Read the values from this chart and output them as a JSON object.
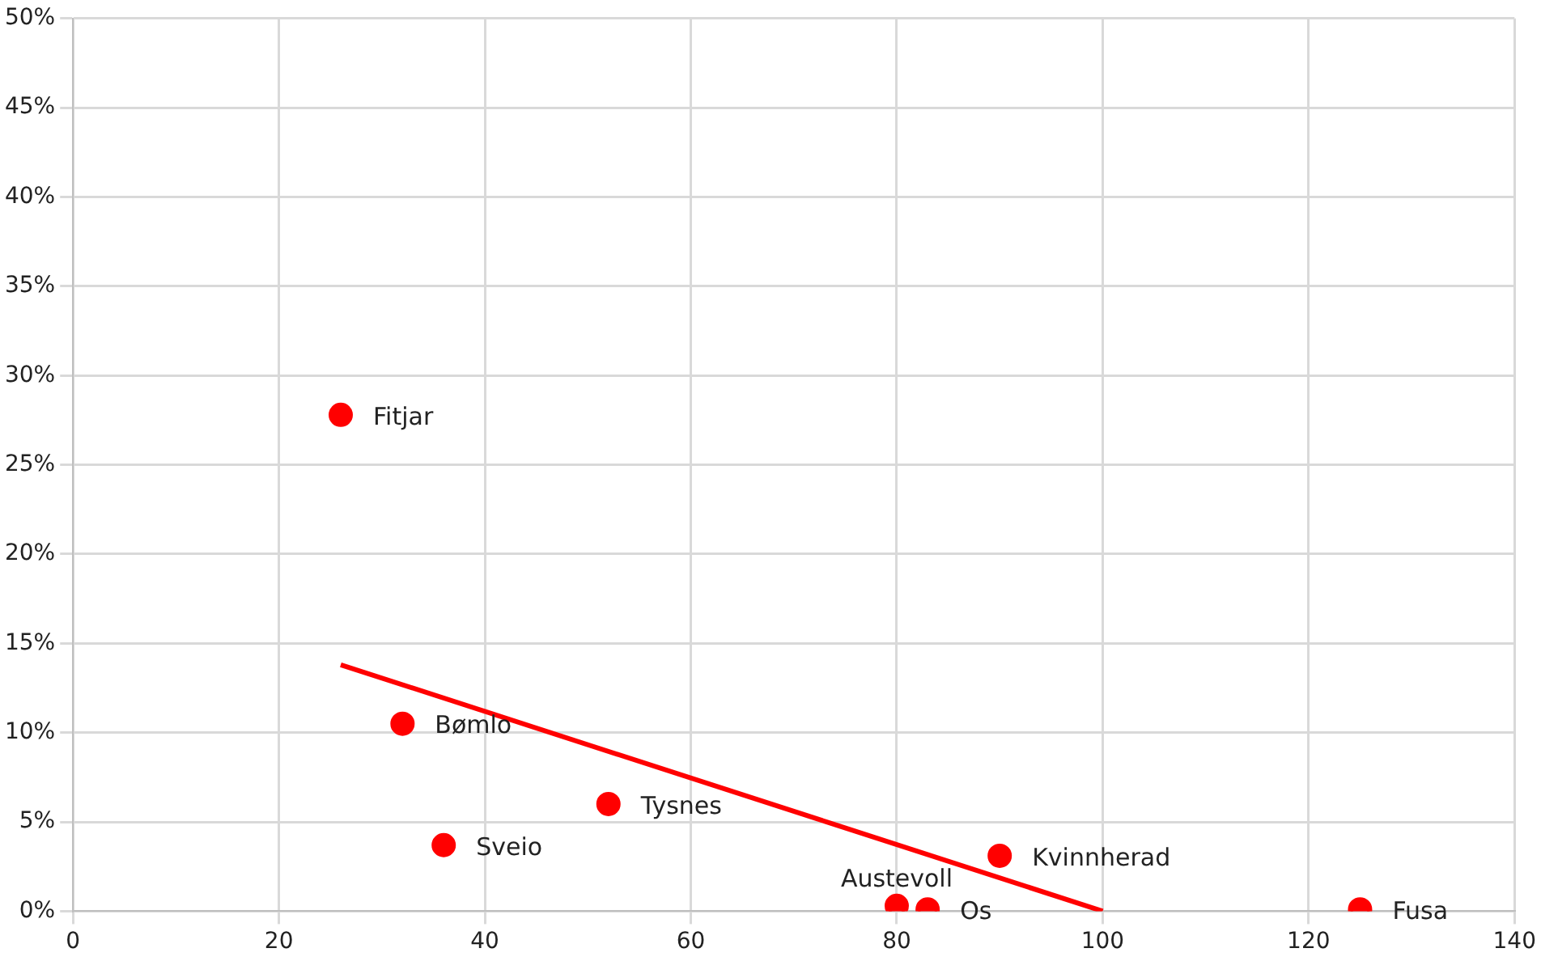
{
  "chart_data": {
    "type": "scatter",
    "xlim": [
      0,
      140
    ],
    "xticks": [
      0,
      20,
      40,
      60,
      80,
      100,
      120,
      140
    ],
    "ylim": [
      0,
      50
    ],
    "yticks": [
      {
        "value": 0,
        "label": "0%"
      },
      {
        "value": 5,
        "label": "5%"
      },
      {
        "value": 10,
        "label": "10%"
      },
      {
        "value": 15,
        "label": "15%"
      },
      {
        "value": 20,
        "label": "20%"
      },
      {
        "value": 25,
        "label": "25%"
      },
      {
        "value": 30,
        "label": "30%"
      },
      {
        "value": 35,
        "label": "35%"
      },
      {
        "value": 40,
        "label": "40%"
      },
      {
        "value": 45,
        "label": "45%"
      },
      {
        "value": 50,
        "label": "50%"
      }
    ],
    "grid": true,
    "legend": false,
    "marker": "circle",
    "series": [
      {
        "color": "#ff0000",
        "x": [
          26,
          32,
          36,
          52,
          80,
          83,
          90,
          125
        ],
        "values": [
          27.8,
          10.5,
          3.7,
          6.0,
          0.3,
          0.1,
          3.1,
          0.1
        ]
      },
      {
        "type": "line",
        "color": "#ff0000",
        "x": [
          26,
          100
        ],
        "values": [
          13.8,
          0
        ],
        "marker": "none"
      }
    ],
    "annotations": [
      {
        "text": "Fitjar",
        "x": 26,
        "y": 27.8
      },
      {
        "text": "Bømlo",
        "x": 32,
        "y": 10.5
      },
      {
        "text": "Sveio",
        "x": 36,
        "y": 3.7
      },
      {
        "text": "Tysnes",
        "x": 52,
        "y": 6.0
      },
      {
        "text": "Austevoll",
        "x": 80,
        "y": 0.3
      },
      {
        "text": "Os",
        "x": 83,
        "y": 0.1
      },
      {
        "text": "Kvinnherad",
        "x": 90,
        "y": 3.1
      },
      {
        "text": "Fusa",
        "x": 125,
        "y": 0.1
      }
    ]
  }
}
